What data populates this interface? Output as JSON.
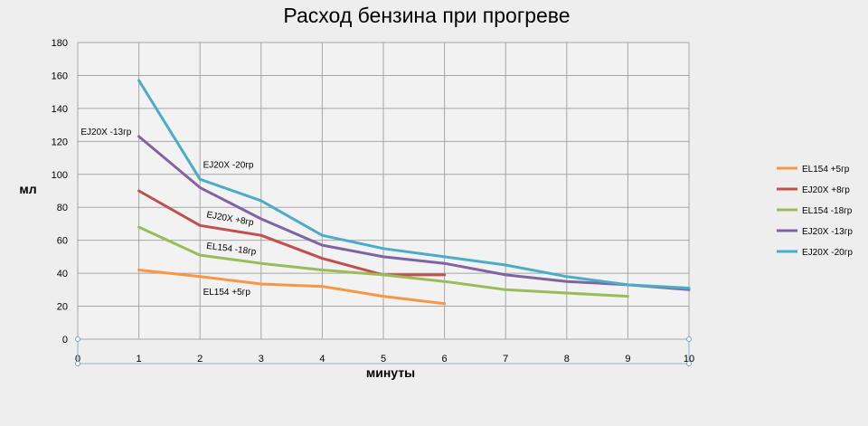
{
  "chart_data": {
    "type": "line",
    "title": "Расход бензина при прогреве",
    "xlabel": "минуты",
    "ylabel": "мл",
    "xlim": [
      0,
      10
    ],
    "ylim": [
      0,
      180
    ],
    "x_ticks": [
      0,
      1,
      2,
      3,
      4,
      5,
      6,
      7,
      8,
      9,
      10
    ],
    "y_ticks": [
      0,
      20,
      40,
      60,
      80,
      100,
      120,
      140,
      160,
      180
    ],
    "grid": true,
    "legend_position": "right",
    "series": [
      {
        "name": "EL154 +5гр",
        "color": "#f79646",
        "points": [
          [
            1,
            42
          ],
          [
            2,
            38
          ],
          [
            3,
            33.5
          ],
          [
            4,
            32
          ],
          [
            5,
            26
          ],
          [
            6,
            21.5
          ]
        ]
      },
      {
        "name": "EJ20X +8гр",
        "color": "#c0504d",
        "points": [
          [
            1,
            90
          ],
          [
            2,
            69
          ],
          [
            3,
            63
          ],
          [
            4,
            49
          ],
          [
            5,
            39
          ],
          [
            6,
            39
          ]
        ]
      },
      {
        "name": "EL154 -18гр",
        "color": "#9bbb59",
        "points": [
          [
            1,
            68
          ],
          [
            2,
            51
          ],
          [
            3,
            46
          ],
          [
            4,
            42
          ],
          [
            5,
            39
          ],
          [
            6,
            35
          ],
          [
            7,
            30
          ],
          [
            8,
            28
          ],
          [
            9,
            26
          ]
        ]
      },
      {
        "name": "EJ20X -13гр",
        "color": "#8064a2",
        "points": [
          [
            1,
            123
          ],
          [
            2,
            92
          ],
          [
            3,
            73
          ],
          [
            4,
            57
          ],
          [
            5,
            50
          ],
          [
            6,
            46
          ],
          [
            7,
            39
          ],
          [
            8,
            35
          ],
          [
            9,
            33
          ],
          [
            10,
            30
          ]
        ]
      },
      {
        "name": "EJ20X -20гр",
        "color": "#4bacc6",
        "points": [
          [
            1,
            157
          ],
          [
            2,
            97
          ],
          [
            3,
            84
          ],
          [
            4,
            63
          ],
          [
            5,
            55
          ],
          [
            6,
            50
          ],
          [
            7,
            45
          ],
          [
            8,
            38
          ],
          [
            9,
            33
          ],
          [
            10,
            31
          ]
        ]
      }
    ],
    "annotations": [
      {
        "text": "EJ20X -13гр",
        "x": 0.05,
        "y": 124,
        "rotate": 0
      },
      {
        "text": "EJ20X -20гр",
        "x": 2.05,
        "y": 104,
        "rotate": 0
      },
      {
        "text": "EJ20X +8гр",
        "x": 2.1,
        "y": 74,
        "rotate": 10
      },
      {
        "text": "EL154 -18гр",
        "x": 2.1,
        "y": 55,
        "rotate": 7
      },
      {
        "text": "EL154 +5гр",
        "x": 2.05,
        "y": 27,
        "rotate": 0
      }
    ]
  }
}
